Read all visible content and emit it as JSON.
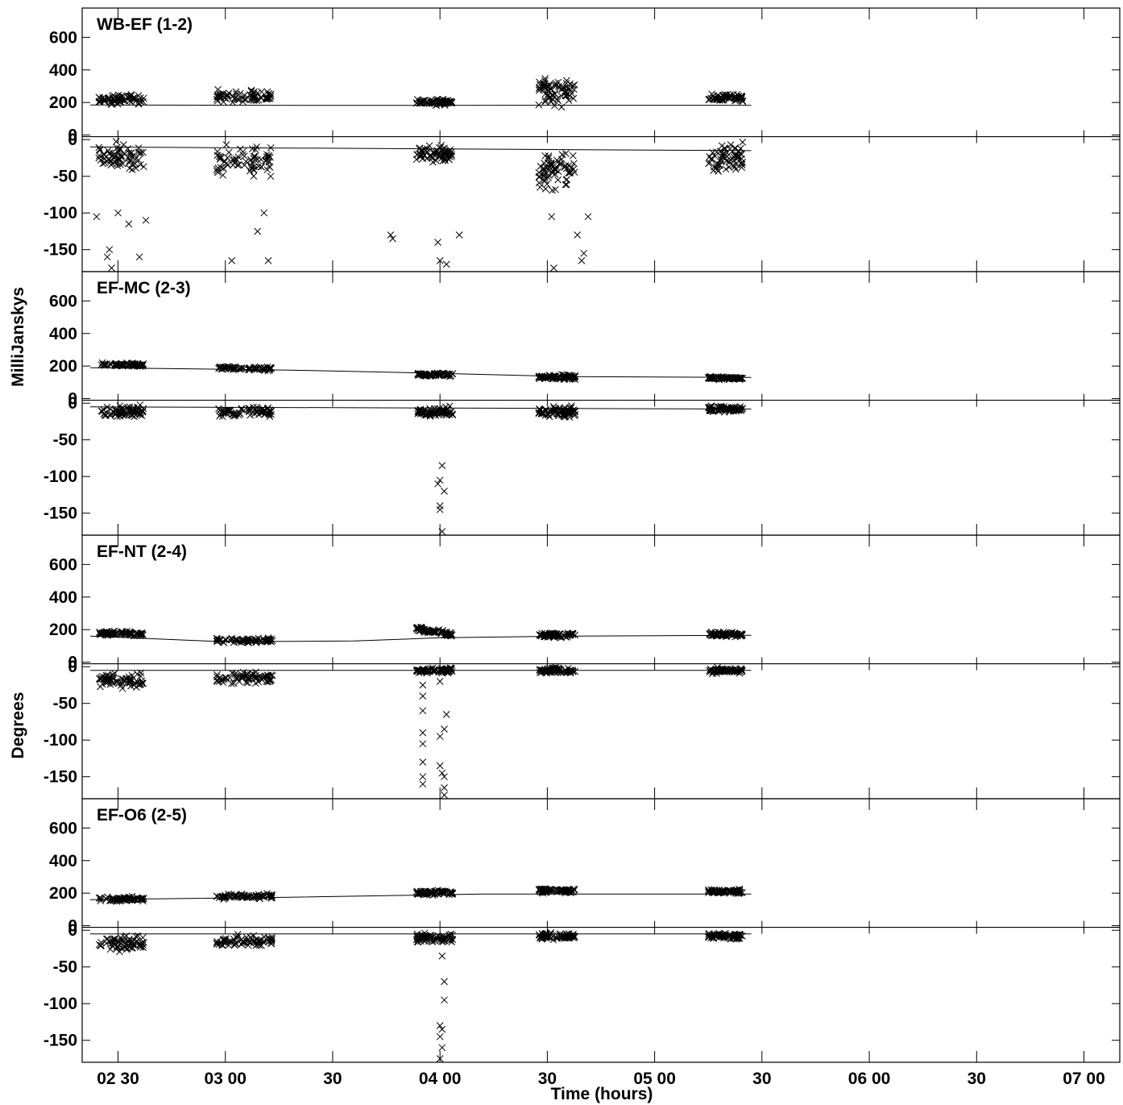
{
  "figure": {
    "top_caption": "",
    "y_title_amplitude": "MilliJanskys",
    "y_title_phase": "Degrees",
    "x_title": "Time (hours)"
  },
  "chart_data": {
    "type": "scatter",
    "marker": "x",
    "x_units": "hours (UT)",
    "x_range": [
      2.333,
      7.167
    ],
    "x_ticks": [
      {
        "t": 2.5,
        "label": "02 30"
      },
      {
        "t": 3.0,
        "label": "03 00"
      },
      {
        "t": 3.5,
        "label": "30"
      },
      {
        "t": 4.0,
        "label": "04 00"
      },
      {
        "t": 4.5,
        "label": "30"
      },
      {
        "t": 5.0,
        "label": "05 00"
      },
      {
        "t": 5.5,
        "label": "30"
      },
      {
        "t": 6.0,
        "label": "06 00"
      },
      {
        "t": 6.5,
        "label": "30"
      },
      {
        "t": 7.0,
        "label": "07 00"
      }
    ],
    "amp_ticks": [
      0,
      200,
      400,
      600
    ],
    "phase_ticks": [
      0,
      -50,
      -100,
      -150
    ],
    "amp_range": [
      -10,
      780
    ],
    "phase_range": [
      -180,
      4
    ],
    "scans": [
      [
        2.41,
        2.62
      ],
      [
        2.96,
        3.22
      ],
      [
        3.89,
        4.06
      ],
      [
        4.46,
        4.63
      ],
      [
        5.25,
        5.41
      ]
    ],
    "panels": [
      {
        "title": "WB-EF (1-2)",
        "amp_scan_means": [
          220,
          260,
          205,
          330,
          240
        ],
        "amp_scan_spread": [
          45,
          55,
          25,
          120,
          35
        ],
        "amp_trend": [
          [
            2.37,
            220
          ],
          [
            2.95,
            215
          ],
          [
            3.5,
            210
          ],
          [
            4.2,
            200
          ],
          [
            4.8,
            210
          ],
          [
            5.5,
            215
          ]
        ],
        "phase_scan_means": [
          -25,
          -30,
          -20,
          -40,
          -25
        ],
        "phase_scan_spread": [
          25,
          25,
          15,
          40,
          25
        ],
        "phase_outliers": [
          [
            2.4,
            -105
          ],
          [
            2.45,
            -160
          ],
          [
            2.46,
            -150
          ],
          [
            2.47,
            -175
          ],
          [
            2.5,
            -100
          ],
          [
            2.55,
            -115
          ],
          [
            2.6,
            -160
          ],
          [
            2.63,
            -110
          ],
          [
            3.03,
            -165
          ],
          [
            3.15,
            -125
          ],
          [
            3.18,
            -100
          ],
          [
            3.2,
            -165
          ],
          [
            3.77,
            -130
          ],
          [
            3.78,
            -135
          ],
          [
            3.99,
            -140
          ],
          [
            4.0,
            -165
          ],
          [
            4.03,
            -170
          ],
          [
            4.09,
            -130
          ],
          [
            4.52,
            -105
          ],
          [
            4.53,
            -175
          ],
          [
            4.64,
            -130
          ],
          [
            4.66,
            -165
          ],
          [
            4.67,
            -155
          ],
          [
            4.69,
            -105
          ]
        ],
        "model_amp": [
          [
            2.37,
            185
          ],
          [
            3.5,
            182
          ],
          [
            4.6,
            183
          ],
          [
            5.45,
            183
          ]
        ],
        "model_phase": [
          [
            2.37,
            -10
          ],
          [
            5.45,
            -15
          ]
        ]
      },
      {
        "title": "EF-MC (2-3)",
        "amp_scan_means": [
          210,
          185,
          140,
          130,
          125
        ],
        "amp_scan_spread": [
          15,
          15,
          15,
          20,
          15
        ],
        "amp_trend": [
          [
            2.37,
            210
          ],
          [
            3.0,
            190
          ],
          [
            3.6,
            170
          ],
          [
            4.2,
            145
          ],
          [
            4.8,
            130
          ],
          [
            5.45,
            125
          ]
        ],
        "phase_scan_means": [
          -12,
          -12,
          -12,
          -12,
          -8
        ],
        "phase_scan_spread": [
          12,
          10,
          10,
          10,
          6
        ],
        "phase_outliers": [
          [
            4.01,
            -85
          ],
          [
            4.0,
            -105
          ],
          [
            4.02,
            -120
          ],
          [
            3.99,
            -110
          ],
          [
            4.0,
            -140
          ],
          [
            4.0,
            -145
          ],
          [
            4.01,
            -175
          ]
        ],
        "model_amp": [
          [
            2.37,
            190
          ],
          [
            3.3,
            175
          ],
          [
            4.0,
            155
          ],
          [
            4.6,
            135
          ],
          [
            5.45,
            130
          ]
        ],
        "model_phase": [
          [
            2.37,
            -5
          ],
          [
            5.45,
            -8
          ]
        ]
      },
      {
        "title": "EF-NT (2-4)",
        "amp_scan_means": [
          180,
          130,
          150,
          165,
          170
        ],
        "amp_scan_spread": [
          20,
          20,
          20,
          20,
          20
        ],
        "amp_trend": [
          [
            2.37,
            180
          ],
          [
            3.0,
            135
          ],
          [
            3.6,
            145
          ],
          [
            3.85,
            280
          ],
          [
            4.1,
            170
          ],
          [
            4.8,
            170
          ],
          [
            5.45,
            170
          ]
        ],
        "phase_scan_means": [
          -18,
          -15,
          -5,
          -5,
          -5
        ],
        "phase_scan_spread": [
          15,
          12,
          5,
          5,
          5
        ],
        "phase_outliers": [
          [
            3.92,
            -25
          ],
          [
            3.92,
            -40
          ],
          [
            3.92,
            -60
          ],
          [
            3.92,
            -90
          ],
          [
            3.92,
            -105
          ],
          [
            3.92,
            -130
          ],
          [
            3.92,
            -150
          ],
          [
            3.92,
            -160
          ],
          [
            4.0,
            -20
          ],
          [
            4.0,
            -95
          ],
          [
            4.02,
            -85
          ],
          [
            4.03,
            -65
          ],
          [
            4.0,
            -135
          ],
          [
            4.01,
            -145
          ],
          [
            4.02,
            -150
          ],
          [
            4.02,
            -165
          ],
          [
            4.02,
            -175
          ]
        ],
        "model_amp": [
          [
            2.37,
            160
          ],
          [
            3.0,
            125
          ],
          [
            3.6,
            130
          ],
          [
            4.0,
            150
          ],
          [
            4.6,
            160
          ],
          [
            5.45,
            165
          ]
        ],
        "model_phase": [
          [
            2.37,
            -5
          ],
          [
            5.45,
            -5
          ]
        ]
      },
      {
        "title": "EF-O6 (2-5)",
        "amp_scan_means": [
          160,
          180,
          200,
          215,
          210
        ],
        "amp_scan_spread": [
          20,
          20,
          20,
          20,
          18
        ],
        "amp_trend": [
          [
            2.37,
            160
          ],
          [
            3.1,
            180
          ],
          [
            3.8,
            200
          ],
          [
            4.4,
            215
          ],
          [
            5.45,
            210
          ]
        ],
        "phase_scan_means": [
          -18,
          -15,
          -10,
          -8,
          -8
        ],
        "phase_scan_spread": [
          15,
          12,
          10,
          6,
          6
        ],
        "phase_outliers": [
          [
            4.01,
            -35
          ],
          [
            4.02,
            -70
          ],
          [
            4.02,
            -95
          ],
          [
            4.0,
            -130
          ],
          [
            4.01,
            -135
          ],
          [
            4.0,
            -145
          ],
          [
            4.01,
            -160
          ],
          [
            4.0,
            -175
          ]
        ],
        "model_amp": [
          [
            2.37,
            160
          ],
          [
            3.3,
            175
          ],
          [
            4.2,
            195
          ],
          [
            5.45,
            195
          ]
        ],
        "model_phase": [
          [
            2.37,
            -5
          ],
          [
            5.45,
            -5
          ]
        ]
      }
    ]
  }
}
